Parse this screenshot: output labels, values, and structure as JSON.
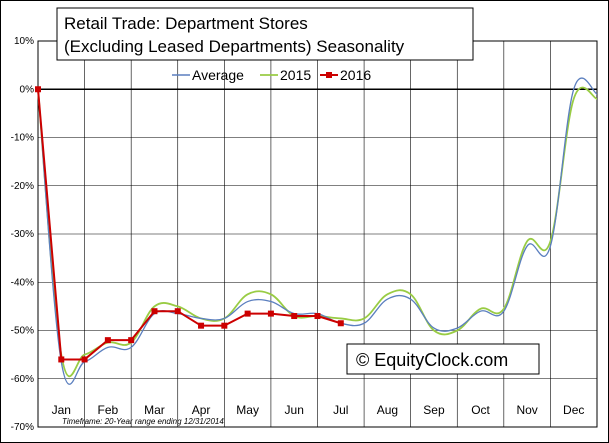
{
  "chart_data": {
    "type": "line",
    "title_line1": "Retail Trade: Department Stores",
    "title_line2": "(Excluding Leased Departments) Seasonality",
    "ylim": [
      -70,
      10
    ],
    "yticks": [
      10,
      0,
      -10,
      -20,
      -30,
      -40,
      -50,
      -60,
      -70
    ],
    "ytick_labels": [
      "10%",
      "0%",
      "-10%",
      "-20%",
      "-30%",
      "-40%",
      "-50%",
      "-60%",
      "-70%"
    ],
    "xlim": [
      0,
      12
    ],
    "categories": [
      "Jan",
      "Feb",
      "Mar",
      "Apr",
      "May",
      "Jun",
      "Jul",
      "Aug",
      "Sep",
      "Oct",
      "Nov",
      "Dec"
    ],
    "grid": true,
    "legend_placement": "top-center",
    "series": [
      {
        "name": "Average",
        "color": "#5b7fbf",
        "marker": "none",
        "x": [
          0,
          0.5,
          1.0,
          1.5,
          2.0,
          2.5,
          3.0,
          3.5,
          4.0,
          4.5,
          5.0,
          5.5,
          6.0,
          6.5,
          7.0,
          7.5,
          8.0,
          8.5,
          9.0,
          9.5,
          10.0,
          10.5,
          11.0,
          11.5,
          12.0
        ],
        "values": [
          0,
          -56.5,
          -56.5,
          -53.5,
          -53.5,
          -46.5,
          -46.5,
          -47.5,
          -47.5,
          -44.0,
          -44.0,
          -46.5,
          -46.5,
          -48.5,
          -48.5,
          -43.5,
          -43.5,
          -49.5,
          -49.5,
          -46.0,
          -46.0,
          -32.5,
          -32.5,
          0,
          -1.0
        ]
      },
      {
        "name": "2015",
        "color": "#99cc44",
        "marker": "none",
        "x": [
          0,
          0.5,
          1.0,
          1.5,
          2.0,
          2.5,
          3.0,
          3.5,
          4.0,
          4.5,
          5.0,
          5.5,
          6.0,
          6.5,
          7.0,
          7.5,
          8.0,
          8.5,
          9.0,
          9.5,
          10.0,
          10.5,
          11.0,
          11.5,
          12.0
        ],
        "values": [
          0,
          -55.0,
          -55.0,
          -52.5,
          -52.5,
          -45.0,
          -45.0,
          -47.5,
          -47.5,
          -42.5,
          -42.5,
          -47.0,
          -47.0,
          -47.5,
          -47.5,
          -42.5,
          -42.5,
          -50.0,
          -50.0,
          -45.5,
          -45.5,
          -31.5,
          -31.5,
          -2.0,
          -2.0
        ]
      },
      {
        "name": "2016",
        "color": "#cc0000",
        "marker": "square",
        "x": [
          0,
          0.5,
          1.0,
          1.5,
          2.0,
          2.5,
          3.0,
          3.5,
          4.0,
          4.5,
          5.0,
          5.5,
          6.0,
          6.5
        ],
        "values": [
          0,
          -56.0,
          -56.0,
          -52.0,
          -52.0,
          -46.0,
          -46.0,
          -49.0,
          -49.0,
          -46.5,
          -46.5,
          -47.0,
          -47.0,
          -48.5
        ]
      }
    ],
    "footnote": "Timeframe: 20-Year range ending 12/31/2014",
    "watermark": "© EquityClock.com"
  }
}
